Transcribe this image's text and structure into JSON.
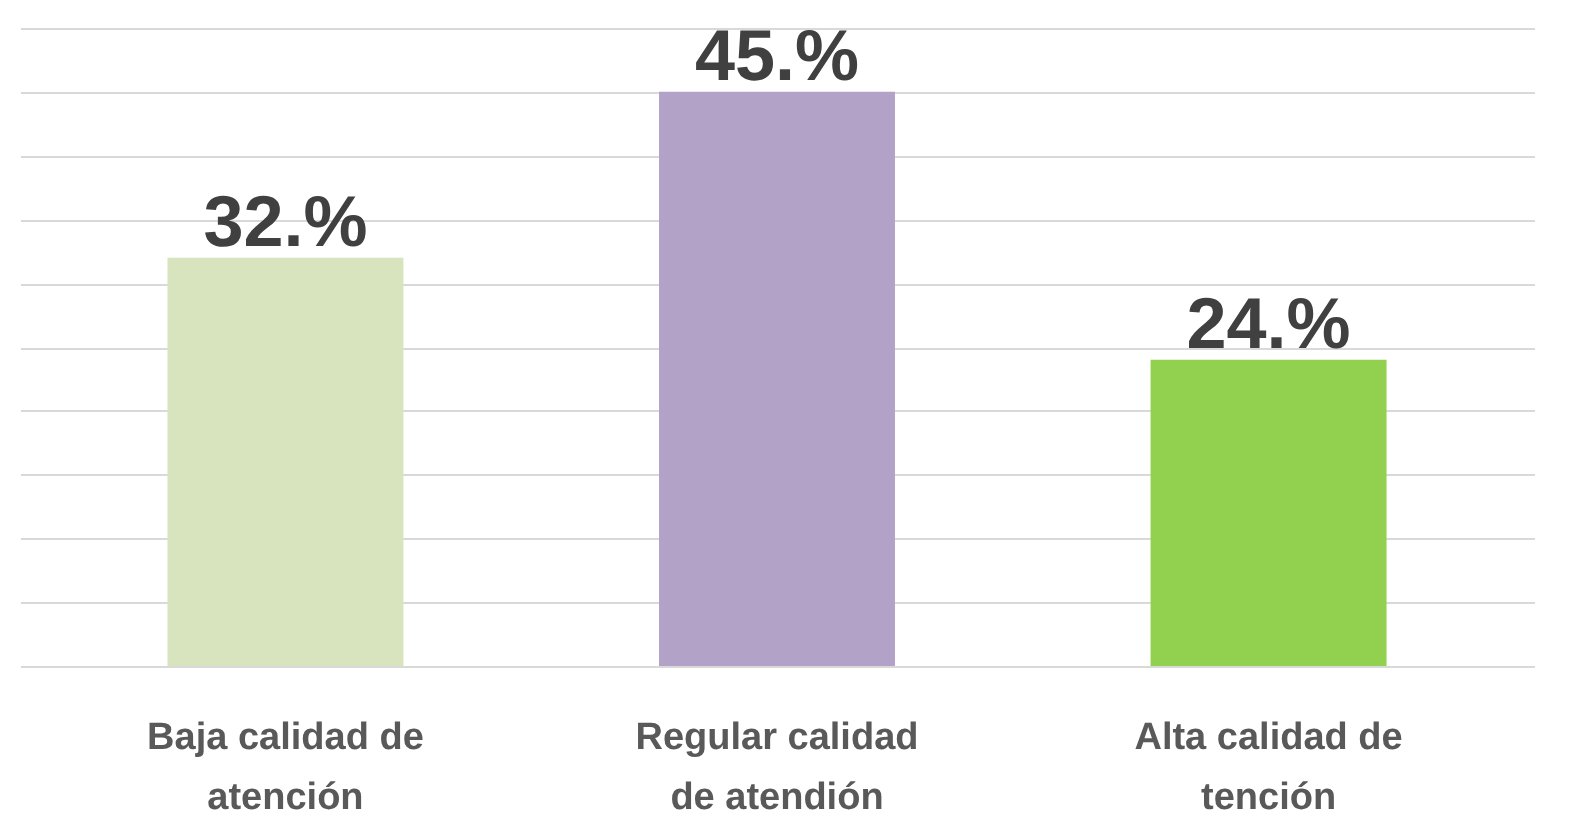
{
  "chart_data": {
    "type": "bar",
    "categories": [
      "Baja calidad de atención",
      "Regular calidad de atendión",
      "Alta calidad de tención"
    ],
    "values": [
      32,
      45,
      24
    ],
    "colors": [
      "#d7e4bd",
      "#b3a2c7",
      "#92d050"
    ],
    "value_labels": [
      "32.%",
      "45.%",
      "24.%"
    ],
    "ylim": [
      0,
      50
    ],
    "grid": "y",
    "tick_labels": "x"
  }
}
